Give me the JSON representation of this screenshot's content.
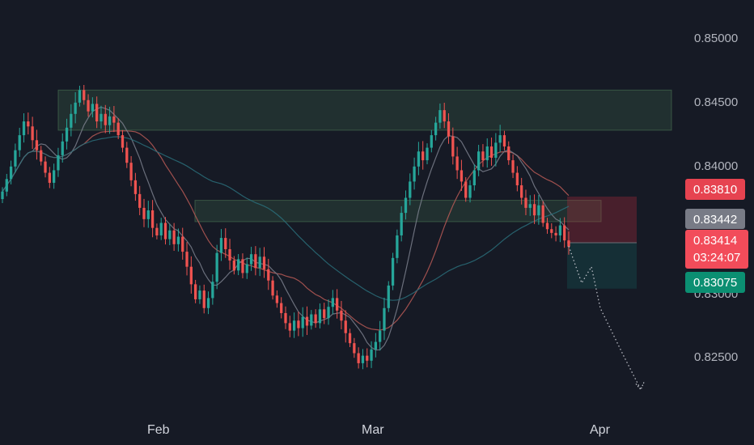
{
  "chart_data": {
    "type": "candlestick",
    "x_ticks": [
      "Feb",
      "Mar",
      "Apr"
    ],
    "y_ticks": [
      "0.85000",
      "0.84500",
      "0.84000",
      "0.83000",
      "0.82500"
    ],
    "ylim": [
      0.8215,
      0.8525
    ],
    "price_labels": {
      "stop": "0.83810",
      "entry": "0.83442",
      "last": "0.83414",
      "countdown": "03:24:07",
      "target": "0.83075"
    },
    "zones": [
      {
        "name": "supply-zone-upper",
        "from": 0.8434,
        "to": 0.8466
      },
      {
        "name": "supply-zone-middle",
        "from": 0.8361,
        "to": 0.8378
      }
    ],
    "position": {
      "side": "short",
      "entry": 0.83442,
      "stop": 0.8381,
      "target": 0.83075
    },
    "candles_close": [
      0.8385,
      0.8395,
      0.8405,
      0.8418,
      0.843,
      0.8441,
      0.8437,
      0.8426,
      0.8418,
      0.8409,
      0.84,
      0.8392,
      0.8402,
      0.8414,
      0.8425,
      0.8436,
      0.8447,
      0.8456,
      0.8466,
      0.8458,
      0.8449,
      0.8455,
      0.8441,
      0.8447,
      0.8438,
      0.8445,
      0.844,
      0.843,
      0.842,
      0.8408,
      0.8394,
      0.8383,
      0.8372,
      0.8363,
      0.837,
      0.8356,
      0.835,
      0.836,
      0.8347,
      0.8354,
      0.8343,
      0.8349,
      0.8337,
      0.8325,
      0.8311,
      0.8299,
      0.8306,
      0.8292,
      0.83,
      0.8313,
      0.8336,
      0.8348,
      0.8339,
      0.833,
      0.8322,
      0.8331,
      0.832,
      0.8327,
      0.8335,
      0.8324,
      0.8333,
      0.8323,
      0.8314,
      0.8302,
      0.8296,
      0.8288,
      0.828,
      0.8274,
      0.8282,
      0.8276,
      0.8285,
      0.8278,
      0.8287,
      0.828,
      0.8291,
      0.8284,
      0.8293,
      0.83,
      0.829,
      0.8282,
      0.8272,
      0.8264,
      0.8256,
      0.8248,
      0.8254,
      0.825,
      0.8259,
      0.8265,
      0.8274,
      0.8292,
      0.831,
      0.8332,
      0.835,
      0.8368,
      0.838,
      0.8393,
      0.8405,
      0.8417,
      0.841,
      0.842,
      0.843,
      0.844,
      0.845,
      0.8441,
      0.8429,
      0.8413,
      0.8402,
      0.8393,
      0.838,
      0.839,
      0.8402,
      0.8417,
      0.841,
      0.8421,
      0.8412,
      0.8424,
      0.843,
      0.8421,
      0.841,
      0.84,
      0.839,
      0.838,
      0.8372,
      0.8375,
      0.8366,
      0.8374,
      0.836,
      0.8355,
      0.8352,
      0.835,
      0.8358,
      0.8346,
      0.8341
    ],
    "ma_series": [
      {
        "color": "#b85a56",
        "period": 20
      },
      {
        "color": "#7a7f8c",
        "period": 8
      },
      {
        "color": "#2a6f7a",
        "period": 50
      }
    ],
    "projection": [
      0.83414,
      0.8312,
      0.8325,
      0.8292,
      0.8255,
      0.8227
    ],
    "colors": {
      "up": "#26a69a",
      "down": "#ef5350",
      "background": "#161a25",
      "stop_badge": "#e64350",
      "entry_badge": "#787b86",
      "target_badge": "#0b8f72"
    }
  }
}
